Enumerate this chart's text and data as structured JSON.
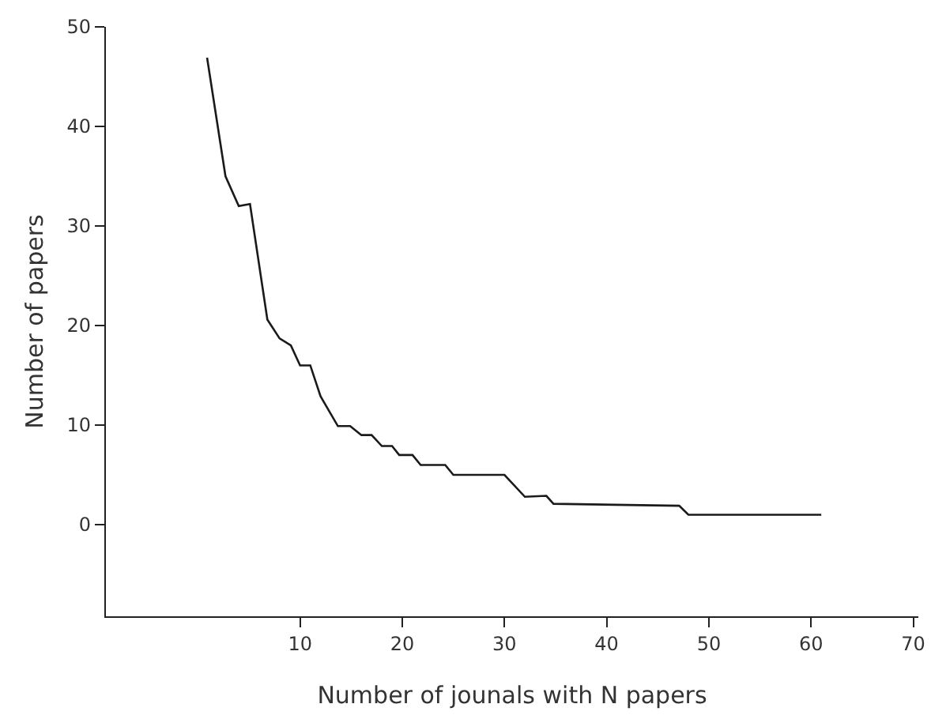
{
  "chart_data": {
    "type": "line",
    "xlabel": "Number of jounals with N papers",
    "ylabel": "Number of papers",
    "series": [
      {
        "color": "#1a1a1a",
        "x": [
          0.9,
          2.7,
          4,
          5.1,
          6.8,
          8,
          9.1,
          10,
          11,
          12,
          13.7,
          14.9,
          16,
          17,
          18,
          19,
          19.7,
          21,
          21.8,
          24.2,
          25,
          30,
          32,
          34.1,
          34.8,
          47.1,
          48,
          61
        ],
        "values": [
          46.9,
          35,
          32,
          32.2,
          20.6,
          18.7,
          18,
          16,
          16,
          12.9,
          9.9,
          9.9,
          9,
          9,
          7.9,
          7.9,
          7,
          7,
          6,
          6,
          5,
          5,
          2.8,
          2.9,
          2.1,
          1.9,
          1,
          1
        ]
      }
    ],
    "xlim": [
      -9,
      70.5
    ],
    "ylim": [
      -9.2,
      50
    ],
    "xticks": [
      10,
      20,
      30,
      40,
      50,
      60,
      70
    ],
    "yticks": [
      0,
      10,
      20,
      30,
      40,
      50
    ],
    "marker": "none",
    "line_style": "solid"
  }
}
